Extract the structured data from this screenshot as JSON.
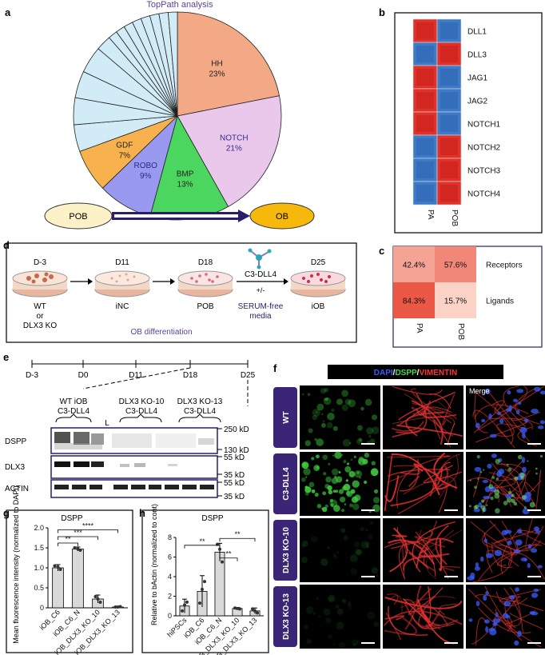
{
  "panel_labels": {
    "a": "a",
    "b": "b",
    "c": "c",
    "d": "d",
    "e": "e",
    "f": "f",
    "g": "g",
    "h": "h"
  },
  "colors": {
    "hh": "#f3a986",
    "notch": "#e9c8ec",
    "bmp": "#4bd660",
    "robo": "#9999f0",
    "gdf": "#f7b24e",
    "other": "#d2ecf7",
    "red": "#e0322a",
    "blue": "#3d7ac8",
    "pob_fill": "#fdf1c7",
    "ob_fill": "#f5b80b",
    "nav": "#2a1d6b",
    "dapi": "#3a5cff",
    "dspp": "#44dd44",
    "vim": "#ff3333",
    "purple": "#5b3fa3"
  },
  "chart_data": [
    {
      "type": "pie",
      "title": "TopPath analysis",
      "slices": [
        {
          "label": "HH",
          "value_label": "23%",
          "value": 23,
          "color": "#f3a986"
        },
        {
          "label": "NOTCH",
          "value_label": "21%",
          "value": 21,
          "color": "#e9c8ec"
        },
        {
          "label": "BMP",
          "value_label": "13%",
          "value": 13,
          "color": "#4bd660"
        },
        {
          "label": "ROBO",
          "value_label": "9%",
          "value": 9,
          "color": "#9999f0"
        },
        {
          "label": "GDF",
          "value_label": "7%",
          "value": 7,
          "color": "#f7b24e"
        },
        {
          "label": "",
          "value_label": "",
          "value": 4.4,
          "color": "#d2ecf7"
        },
        {
          "label": "",
          "value_label": "",
          "value": 4.4,
          "color": "#d2ecf7"
        },
        {
          "label": "",
          "value_label": "",
          "value": 4.4,
          "color": "#d2ecf7"
        },
        {
          "label": "",
          "value_label": "",
          "value": 4.4,
          "color": "#d2ecf7"
        },
        {
          "label": "",
          "value_label": "",
          "value": 2.5,
          "color": "#d2ecf7"
        },
        {
          "label": "",
          "value_label": "",
          "value": 1.5,
          "color": "#d2ecf7"
        },
        {
          "label": "",
          "value_label": "",
          "value": 1.5,
          "color": "#d2ecf7"
        },
        {
          "label": "",
          "value_label": "",
          "value": 1.5,
          "color": "#d2ecf7"
        },
        {
          "label": "",
          "value_label": "",
          "value": 1.5,
          "color": "#d2ecf7"
        },
        {
          "label": "",
          "value_label": "",
          "value": 1.5,
          "color": "#d2ecf7"
        },
        {
          "label": "",
          "value_label": "",
          "value": 1.5,
          "color": "#d2ecf7"
        },
        {
          "label": "",
          "value_label": "",
          "value": 1.5,
          "color": "#d2ecf7"
        },
        {
          "label": "",
          "value_label": "",
          "value": 1.5,
          "color": "#d2ecf7"
        }
      ],
      "flow": {
        "from": "POB",
        "to": "OB"
      }
    },
    {
      "type": "heatmap",
      "rows": [
        "DLL1",
        "DLL3",
        "JAG1",
        "JAG2",
        "NOTCH1",
        "NOTCH2",
        "NOTCH3",
        "NOTCH4"
      ],
      "columns": [
        "PA",
        "POB"
      ],
      "cells": [
        [
          "red",
          "blue"
        ],
        [
          "blue",
          "red"
        ],
        [
          "red",
          "blue"
        ],
        [
          "red",
          "blue"
        ],
        [
          "red",
          "blue"
        ],
        [
          "blue",
          "red"
        ],
        [
          "blue",
          "red"
        ],
        [
          "blue",
          "red"
        ]
      ]
    },
    {
      "type": "heatmap",
      "rows": [
        "Receptors",
        "Ligands"
      ],
      "columns": [
        "PA",
        "POB"
      ],
      "values": [
        [
          42.4,
          57.6
        ],
        [
          84.3,
          15.7
        ]
      ],
      "value_labels": [
        [
          "42.4%",
          "57.6%"
        ],
        [
          "84.3%",
          "15.7%"
        ]
      ]
    },
    {
      "type": "bar",
      "title": "DSPP",
      "ylabel": "Mean fluorescence intensity (normalized to DAPI)",
      "categories": [
        "iOB_C6",
        "iOB_C6_N",
        "iOB_DLX3_KO_10",
        "iOB_DLX3_KO_13"
      ],
      "values": [
        1.0,
        1.47,
        0.22,
        0.02
      ],
      "ylim": [
        0,
        2.0
      ],
      "yticks": [
        "0",
        "0.5",
        "1.0",
        "1.5",
        "2.0"
      ],
      "significance": [
        "**",
        "***",
        "****"
      ]
    },
    {
      "type": "bar",
      "title": "DSPP",
      "ylabel": "Relative to bActin (normalized to cont)",
      "categories": [
        "hiPSCs",
        "iOB_C6",
        "iOB_C6_N",
        "iOB_DLX3_KO_10",
        "iOB_DLX3_KO_13"
      ],
      "values": [
        1.0,
        2.5,
        6.5,
        0.75,
        0.5
      ],
      "ylim": [
        0,
        8
      ],
      "yticks": [
        "0",
        "2",
        "4",
        "6",
        "8"
      ],
      "significance": [
        "**",
        "**",
        "**"
      ]
    }
  ],
  "panel_d": {
    "steps": [
      {
        "day": "D-3",
        "label_lines": [
          "WT",
          "or",
          "DLX3 KO"
        ]
      },
      {
        "day": "D11",
        "label_lines": [
          "iNC"
        ]
      },
      {
        "day": "D18",
        "label_lines": [
          "POB"
        ]
      },
      {
        "day": "D25",
        "label_lines": [
          "iOB"
        ]
      }
    ],
    "treatment": "C3-DLL4",
    "plusminus": "+/-",
    "media_lines": [
      "SERUM-free",
      "media"
    ],
    "caption": "OB differentiation"
  },
  "panel_e": {
    "timeline": [
      "D-3",
      "D0",
      "D11",
      "D18",
      "D25"
    ],
    "groups": [
      [
        "WT iOB",
        "C3-DLL4"
      ],
      [
        "DLX3 KO-10",
        "C3-DLL4"
      ],
      [
        "DLX3  KO-13",
        "C3-DLL4"
      ]
    ],
    "lane_marker": "L",
    "blots": [
      "DSPP",
      "DLX3",
      "ACTIN"
    ],
    "mw": [
      "250 kD",
      "130 kD",
      "55 kD",
      "35 kD",
      "55 kD",
      "35 kD"
    ]
  },
  "panel_f": {
    "legend": {
      "dapi": "DAPI",
      "slash": "/",
      "dspp": "DSPP",
      "vim": "VIMENTIN"
    },
    "rows": [
      "WT",
      "C3-DLL4",
      "DLX3 KO-10",
      "DLX3 KO-13"
    ],
    "merge_label": "Merge"
  }
}
